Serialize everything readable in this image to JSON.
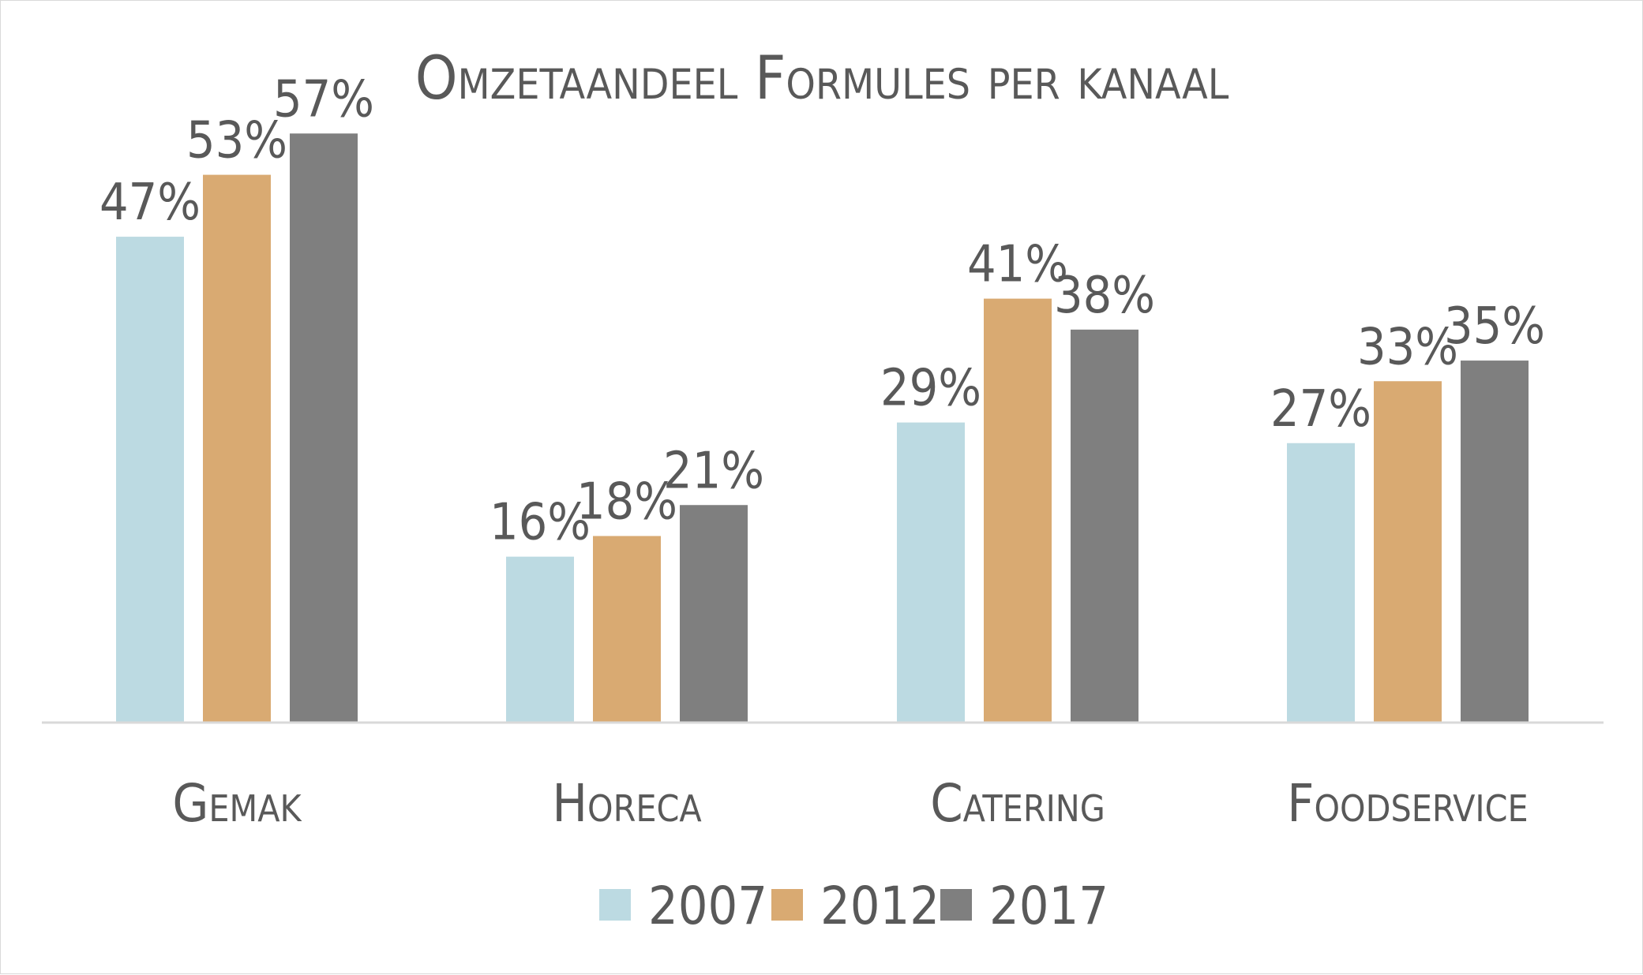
{
  "chart_data": {
    "type": "bar",
    "title": "Omzetaandeel Formules per kanaal",
    "categories": [
      "Gemak",
      "Horeca",
      "Catering",
      "Foodservice"
    ],
    "series": [
      {
        "name": "2007",
        "color": "#bcdae2",
        "values": [
          47,
          16,
          29,
          27
        ],
        "labels": [
          "47%",
          "16%",
          "29%",
          "27%"
        ]
      },
      {
        "name": "2012",
        "color": "#d9aa72",
        "values": [
          53,
          18,
          41,
          33
        ],
        "labels": [
          "53%",
          "18%",
          "41%",
          "33%"
        ]
      },
      {
        "name": "2017",
        "color": "#7f7f7f",
        "values": [
          57,
          21,
          38,
          35
        ],
        "labels": [
          "57%",
          "21%",
          "38%",
          "35%"
        ]
      }
    ],
    "ylim": [
      0,
      60
    ],
    "grid": false,
    "legend": "bottom",
    "data_labels": true
  }
}
